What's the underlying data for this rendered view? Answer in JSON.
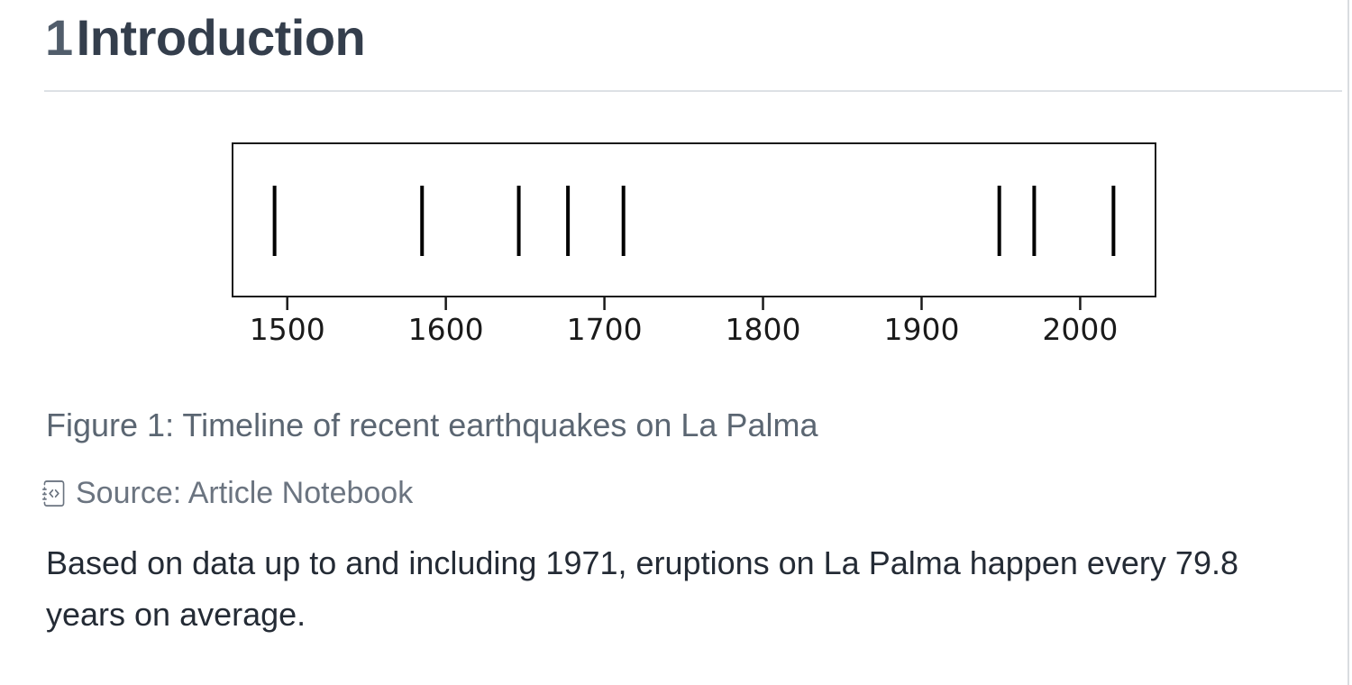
{
  "heading": {
    "number": "1",
    "title": "Introduction"
  },
  "figure": {
    "caption": "Figure 1: Timeline of recent earthquakes on La Palma",
    "source_label": "Source: Article Notebook",
    "source_icon": "journal-code-icon"
  },
  "chart_data": {
    "type": "scatter",
    "subtype": "event-plot-vertical-tick-markers",
    "title": "",
    "xlabel": "",
    "ylabel": "",
    "x": [
      1492,
      1585,
      1646,
      1677,
      1712,
      1949,
      1971,
      2021
    ],
    "xticks": [
      1500,
      1600,
      1700,
      1800,
      1900,
      2000
    ],
    "xlim": [
      1465.5,
      2047.5
    ],
    "grid": false,
    "legend": false,
    "marker": "vertical-line",
    "marker_color": "#000000",
    "frame_color": "#1a1a1a",
    "description": "Timeline of recent earthquakes on La Palma"
  },
  "body": {
    "line1": "Based on data up to and including 1971, eruptions on La Palma happen every 79.8",
    "line2": "years on average."
  },
  "colors": {
    "heading_number": "#515d6b",
    "heading_text": "#343e4c",
    "caption_text": "#5b6672",
    "source_text": "#6b7480",
    "body_text": "#242b35",
    "divider": "#dde1e5",
    "plot_ink": "#000000",
    "background": "#ffffff"
  }
}
